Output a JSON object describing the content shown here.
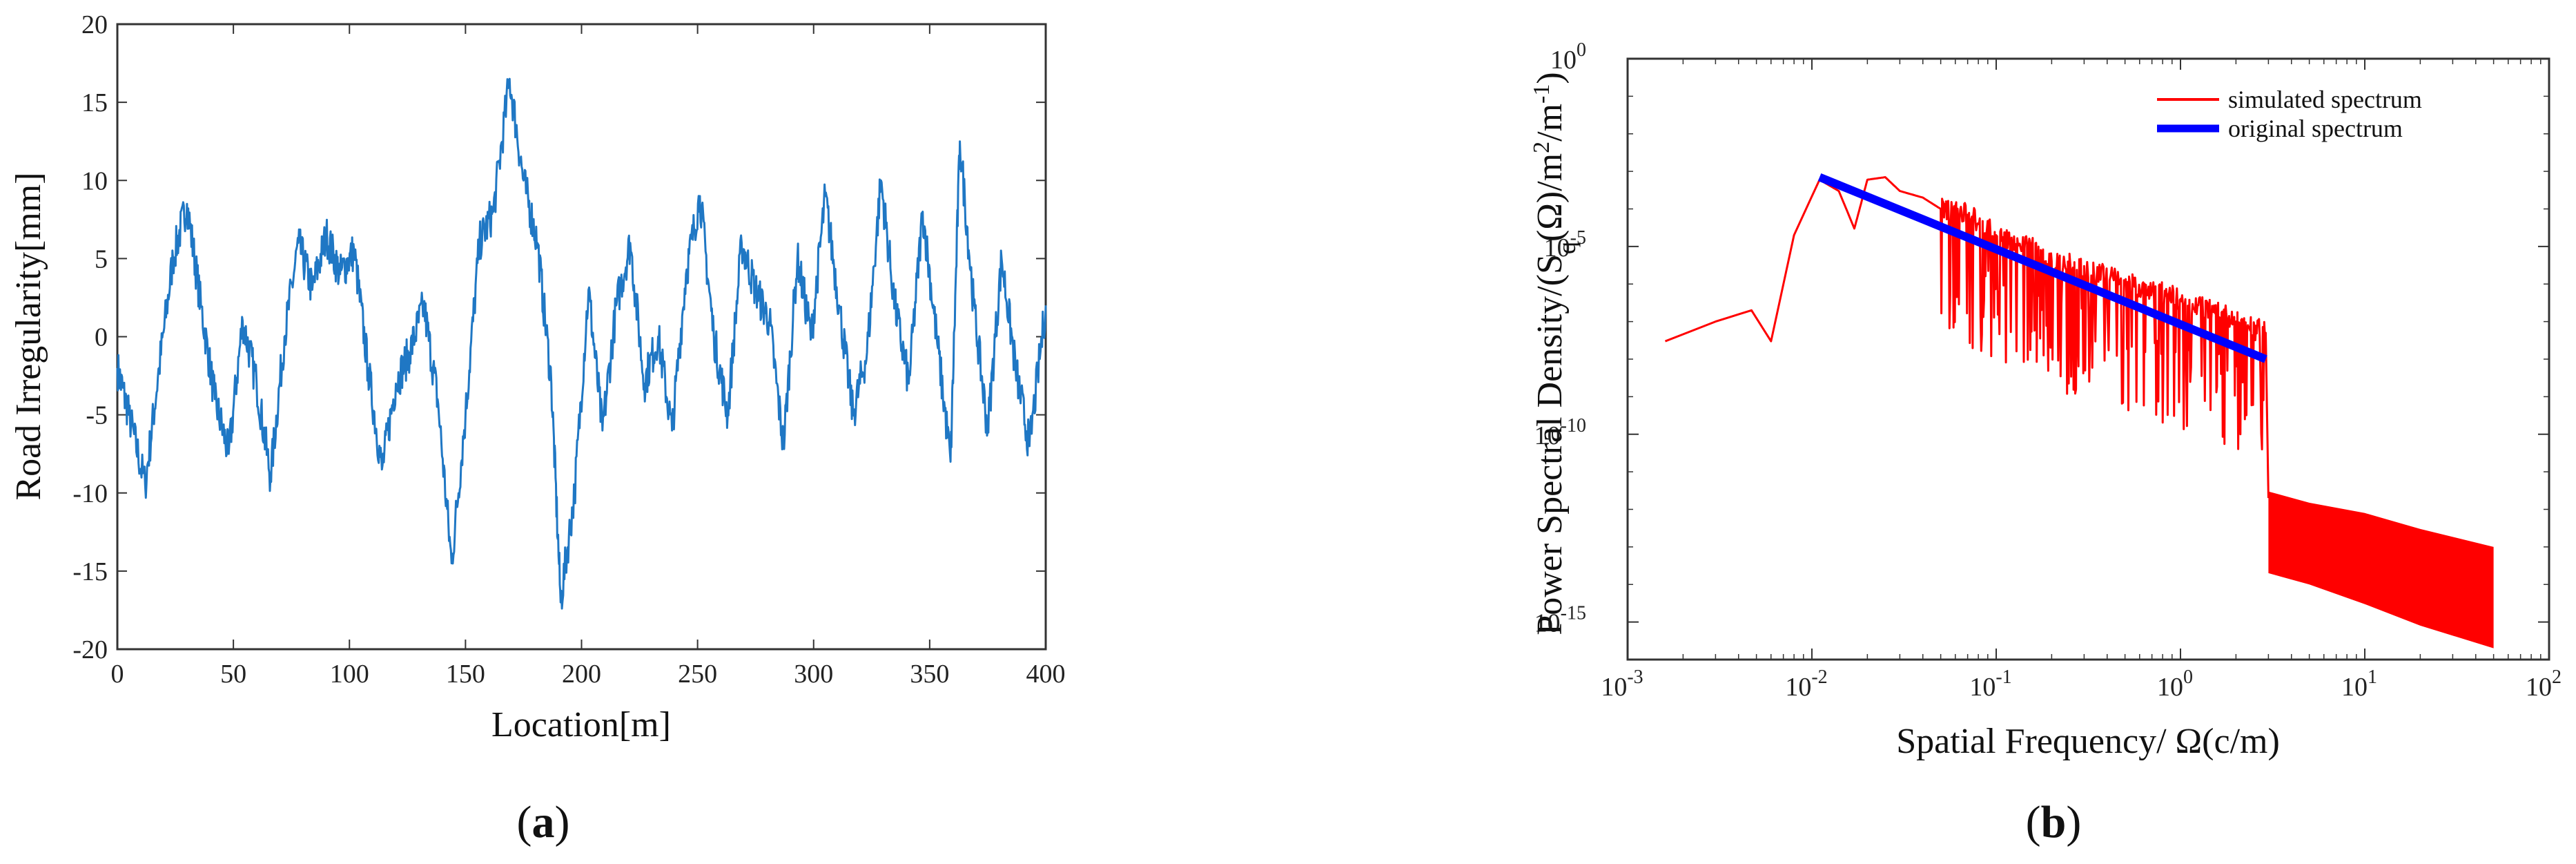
{
  "chart_data": [
    {
      "type": "line",
      "panel_label": "a",
      "xlabel": "Location[m]",
      "ylabel": "Road Irregularity[mm]",
      "xlim": [
        0,
        400
      ],
      "ylim": [
        -20,
        20
      ],
      "xticks": [
        0,
        50,
        100,
        150,
        200,
        250,
        300,
        350,
        400
      ],
      "yticks": [
        -20,
        -15,
        -10,
        -5,
        0,
        5,
        10,
        15,
        20
      ],
      "grid": false,
      "line_color": "#1f77c4",
      "series": [
        {
          "x": [
            0,
            5,
            12,
            18,
            24,
            30,
            36,
            42,
            48,
            54,
            60,
            66,
            72,
            78,
            84,
            90,
            96,
            102,
            108,
            114,
            120,
            126,
            132,
            138,
            144,
            150,
            156,
            162,
            169,
            175,
            181,
            187,
            191,
            197,
            203,
            209,
            215,
            221,
            227,
            233,
            239,
            245,
            251,
            257,
            263,
            269,
            275,
            281,
            287,
            293,
            299,
            305,
            311,
            317,
            323,
            329,
            335,
            341,
            347,
            353,
            359,
            363,
            369,
            375,
            381,
            387,
            393,
            400
          ],
          "y": [
            -2,
            -5,
            -9.5,
            -2,
            5,
            8.5,
            2,
            -4,
            -7.5,
            1,
            -3,
            -9,
            0,
            6,
            3,
            6.5,
            4,
            5.5,
            -2,
            -8.5,
            -3,
            -1,
            2,
            -4,
            -14.5,
            -5,
            6,
            8,
            16.5,
            10,
            6,
            -3,
            -17,
            -10,
            3,
            -6,
            2,
            6,
            -3,
            0,
            -6,
            4,
            9,
            0,
            -5,
            6,
            3,
            1,
            -7,
            5,
            0,
            9,
            2,
            -5,
            -1,
            10,
            2,
            -3,
            8,
            0,
            -8,
            12.5,
            2,
            -6,
            5,
            -2,
            -7,
            2
          ]
        }
      ]
    },
    {
      "type": "line",
      "panel_label": "b",
      "xlabel": "Spatial Frequency/ Ω(c/m)",
      "ylabel": "Power Spectral Density/(Sq(Ω)/m²/m⁻¹)",
      "xscale": "log",
      "yscale": "log",
      "xlim": [
        0.001,
        100
      ],
      "ylim": [
        1e-16,
        1
      ],
      "xtick_labels": [
        {
          "base": "10",
          "exp": "-3"
        },
        {
          "base": "10",
          "exp": "-2"
        },
        {
          "base": "10",
          "exp": "-1"
        },
        {
          "base": "10",
          "exp": "0"
        },
        {
          "base": "10",
          "exp": "1"
        },
        {
          "base": "10",
          "exp": "2"
        }
      ],
      "ytick_labels": [
        {
          "base": "10",
          "exp": "0"
        },
        {
          "base": "10",
          "exp": "-5"
        },
        {
          "base": "10",
          "exp": "-10"
        },
        {
          "base": "10",
          "exp": "-15"
        }
      ],
      "legend": "top-right",
      "grid": false,
      "series": [
        {
          "name": "simulated spectrum",
          "color": "#ff0000",
          "x": [
            0.0016,
            0.003,
            0.0047,
            0.006,
            0.008,
            0.011,
            0.014,
            0.017,
            0.02,
            0.025,
            0.03,
            0.04,
            0.05,
            0.07,
            0.1,
            0.15,
            0.2,
            0.3,
            0.5,
            0.7,
            1,
            1.5,
            2,
            2.9,
            3,
            5,
            10,
            20,
            50
          ],
          "y": [
            3e-08,
            1e-07,
            2e-07,
            3e-08,
            2e-05,
            0.0006,
            0.0003,
            3e-05,
            0.0006,
            0.0007,
            0.0003,
            0.0002,
            0.0001,
            7e-05,
            2e-05,
            1e-05,
            4e-06,
            3e-06,
            1e-06,
            7e-07,
            4e-07,
            2e-07,
            1e-07,
            5e-08,
            2e-12,
            1.5e-12,
            8e-13,
            3e-13,
            1e-13
          ]
        },
        {
          "name": "original spectrum",
          "color": "#0000ff",
          "x": [
            0.011,
            2.9
          ],
          "y": [
            0.0007,
            1e-08
          ]
        }
      ]
    }
  ]
}
